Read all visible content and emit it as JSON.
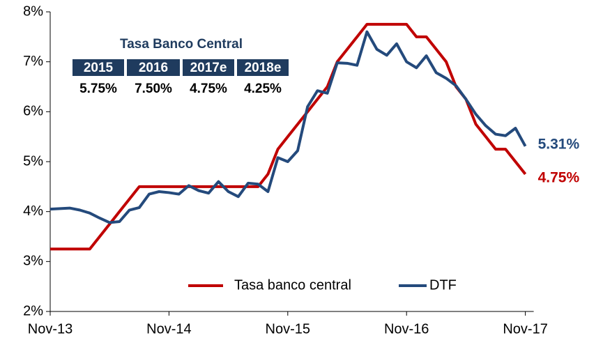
{
  "chart_data": {
    "type": "line",
    "categories": [
      "Nov-13",
      null,
      null,
      null,
      null,
      null,
      null,
      null,
      null,
      null,
      null,
      null,
      "Nov-14",
      null,
      null,
      null,
      null,
      null,
      null,
      null,
      null,
      null,
      null,
      null,
      "Nov-15",
      null,
      null,
      null,
      null,
      null,
      null,
      null,
      null,
      null,
      null,
      null,
      "Nov-16",
      null,
      null,
      null,
      null,
      null,
      null,
      null,
      null,
      null,
      null,
      null,
      "Nov-17"
    ],
    "series": [
      {
        "name": "Tasa banco central",
        "color": "#c00000",
        "end_label": "4.75%",
        "values": [
          3.25,
          3.25,
          3.25,
          3.25,
          3.25,
          3.5,
          3.75,
          4.0,
          4.25,
          4.5,
          4.5,
          4.5,
          4.5,
          4.5,
          4.5,
          4.5,
          4.5,
          4.5,
          4.5,
          4.5,
          4.5,
          4.5,
          4.75,
          5.25,
          5.5,
          5.75,
          6.0,
          6.25,
          6.5,
          7.0,
          7.25,
          7.5,
          7.75,
          7.75,
          7.75,
          7.75,
          7.75,
          7.5,
          7.5,
          7.25,
          7.0,
          6.5,
          6.25,
          5.75,
          5.5,
          5.25,
          5.25,
          5.0,
          4.75
        ]
      },
      {
        "name": "DTF",
        "color": "#244a7c",
        "end_label": "5.31%",
        "values": [
          4.05,
          4.06,
          4.07,
          4.03,
          3.97,
          3.87,
          3.78,
          3.8,
          4.03,
          4.08,
          4.35,
          4.4,
          4.38,
          4.35,
          4.52,
          4.42,
          4.37,
          4.6,
          4.4,
          4.3,
          4.57,
          4.55,
          4.4,
          5.08,
          5.0,
          5.22,
          6.1,
          6.42,
          6.37,
          6.98,
          6.97,
          6.93,
          7.6,
          7.25,
          7.13,
          7.36,
          7.0,
          6.88,
          7.12,
          6.78,
          6.67,
          6.52,
          6.25,
          5.95,
          5.72,
          5.55,
          5.52,
          5.67,
          5.31
        ]
      }
    ],
    "ylim": [
      2,
      8
    ],
    "yticks": [
      {
        "value": 2,
        "label": "2%"
      },
      {
        "value": 3,
        "label": "3%"
      },
      {
        "value": 4,
        "label": "4%"
      },
      {
        "value": 5,
        "label": "5%"
      },
      {
        "value": 6,
        "label": "6%"
      },
      {
        "value": 7,
        "label": "7%"
      },
      {
        "value": 8,
        "label": "8%"
      }
    ],
    "grid": false,
    "legend": "bottom",
    "inset": {
      "title": "Tasa Banco Central",
      "headers": [
        "2015",
        "2016",
        "2017e",
        "2018e"
      ],
      "values": [
        "5.75%",
        "7.50%",
        "4.75%",
        "4.25%"
      ],
      "color": "#1f3b5e"
    }
  }
}
